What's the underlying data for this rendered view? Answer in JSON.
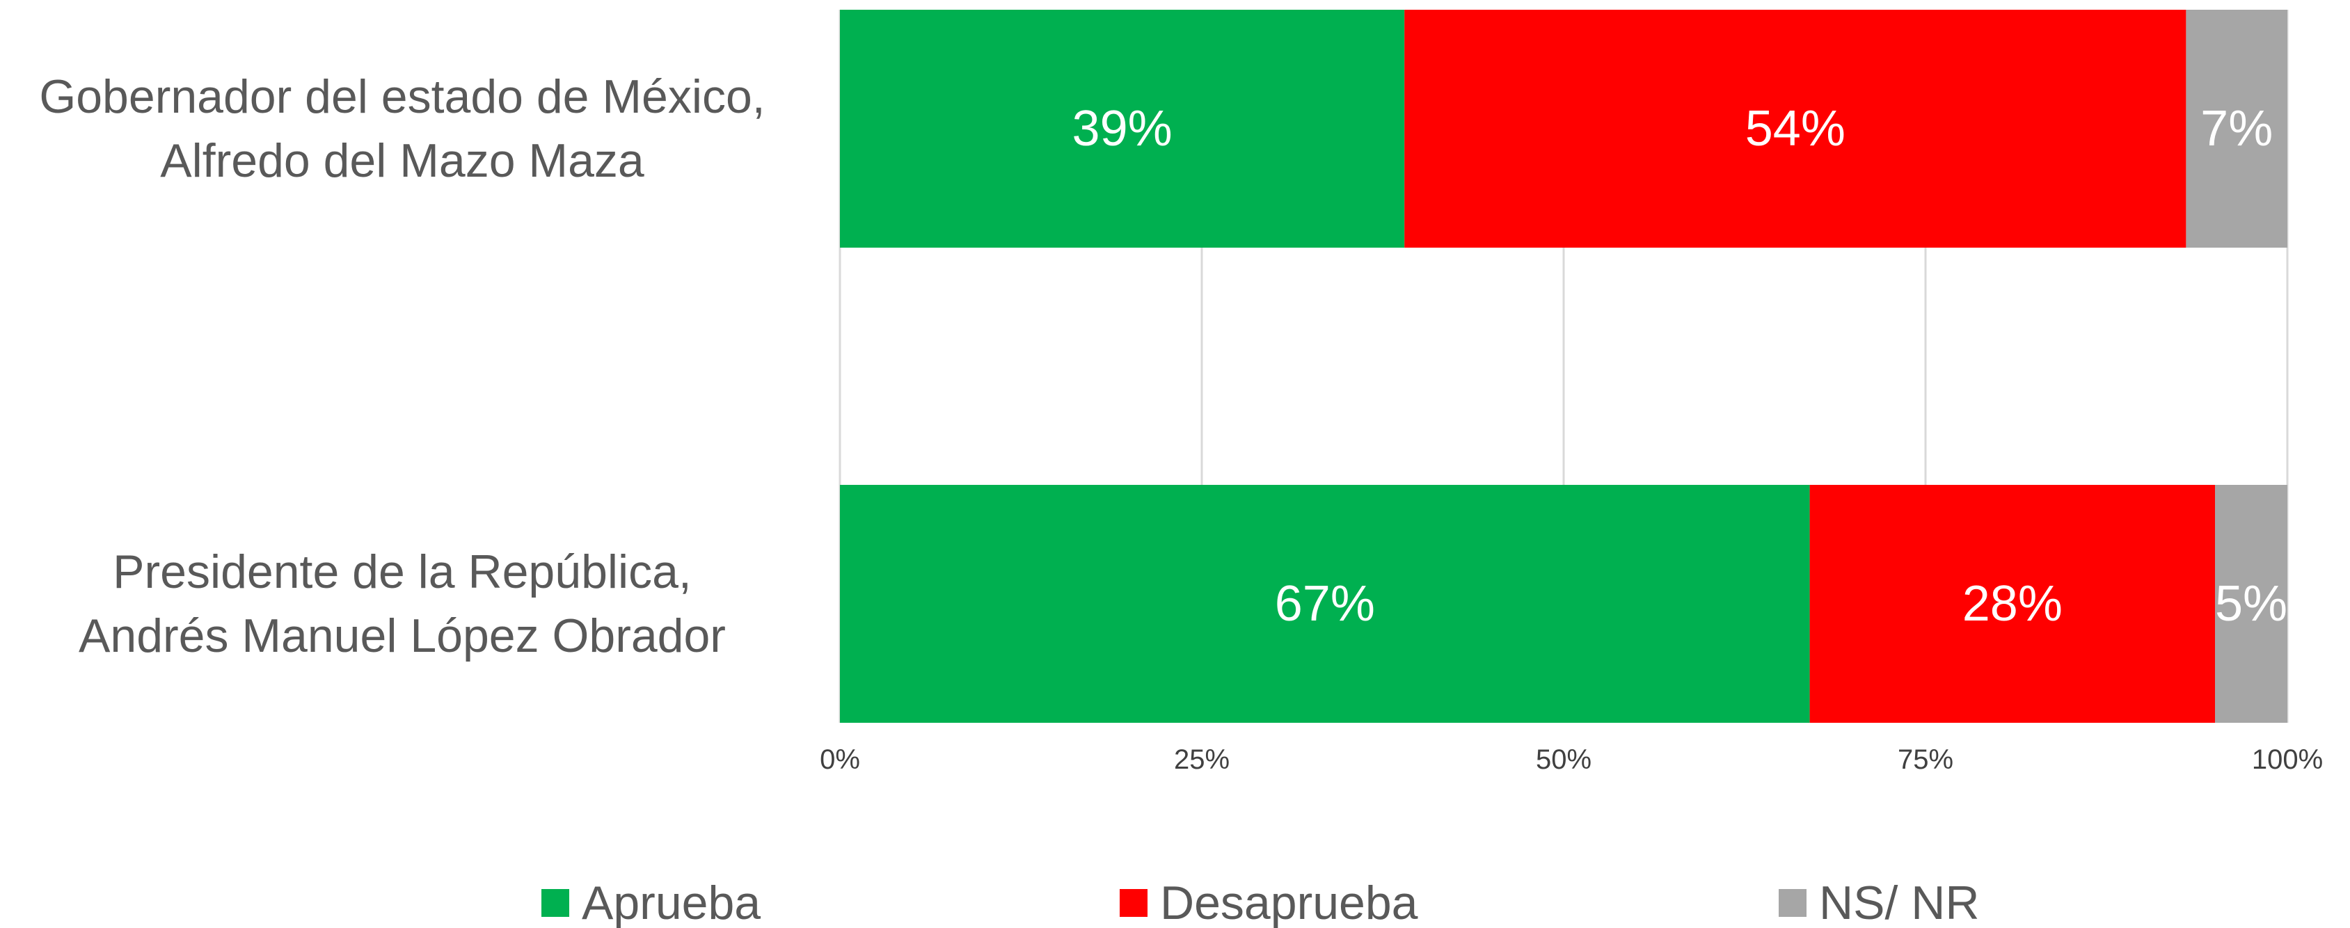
{
  "chart_data": {
    "type": "bar",
    "orientation": "horizontal",
    "stacked": true,
    "categories": [
      [
        "Gobernador del estado de México,",
        "Alfredo del Mazo Maza"
      ],
      [
        "Presidente de la República,",
        "Andrés Manuel López Obrador"
      ]
    ],
    "series": [
      {
        "name": "Aprueba",
        "values": [
          39,
          67
        ],
        "labels": [
          "39%",
          "67%"
        ],
        "color": "#00B050"
      },
      {
        "name": "Desaprueba",
        "values": [
          54,
          28
        ],
        "labels": [
          "54%",
          "28%"
        ],
        "color": "#FF0000"
      },
      {
        "name": "NS/ NR",
        "values": [
          7,
          5
        ],
        "labels": [
          "7%",
          "5%"
        ],
        "color": "#A6A6A6"
      }
    ],
    "xlim": [
      0,
      100
    ],
    "x_ticks": [
      0,
      25,
      50,
      75,
      100
    ],
    "x_tick_labels": [
      "0%",
      "25%",
      "50%",
      "75%",
      "100%"
    ],
    "grid": true,
    "legend_position": "bottom",
    "title": "",
    "xlabel": "",
    "ylabel": ""
  }
}
